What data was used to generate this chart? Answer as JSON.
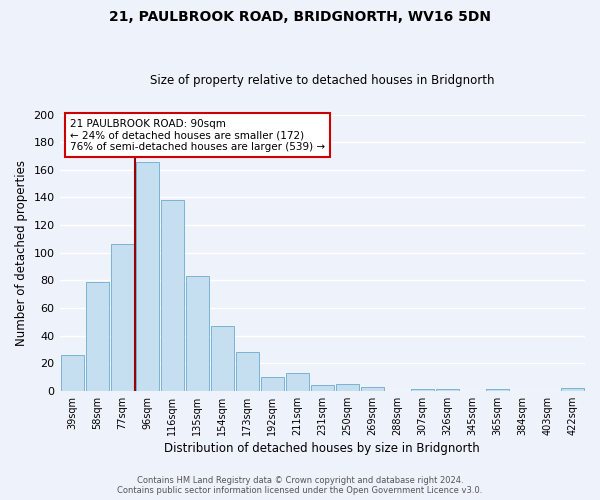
{
  "title": "21, PAULBROOK ROAD, BRIDGNORTH, WV16 5DN",
  "subtitle": "Size of property relative to detached houses in Bridgnorth",
  "xlabel": "Distribution of detached houses by size in Bridgnorth",
  "ylabel": "Number of detached properties",
  "bar_labels": [
    "39sqm",
    "58sqm",
    "77sqm",
    "96sqm",
    "116sqm",
    "135sqm",
    "154sqm",
    "173sqm",
    "192sqm",
    "211sqm",
    "231sqm",
    "250sqm",
    "269sqm",
    "288sqm",
    "307sqm",
    "326sqm",
    "345sqm",
    "365sqm",
    "384sqm",
    "403sqm",
    "422sqm"
  ],
  "bar_values": [
    26,
    79,
    106,
    166,
    138,
    83,
    47,
    28,
    10,
    13,
    4,
    5,
    3,
    0,
    1,
    1,
    0,
    1,
    0,
    0,
    2
  ],
  "bar_color": "#c5dff0",
  "bar_edge_color": "#7ab4d4",
  "highlight_index": 3,
  "highlight_line_color": "#9b0000",
  "annotation_line1": "21 PAULBROOK ROAD: 90sqm",
  "annotation_line2": "← 24% of detached houses are smaller (172)",
  "annotation_line3": "76% of semi-detached houses are larger (539) →",
  "annotation_box_edgecolor": "#cc0000",
  "annotation_box_facecolor": "white",
  "ylim": [
    0,
    200
  ],
  "yticks": [
    0,
    20,
    40,
    60,
    80,
    100,
    120,
    140,
    160,
    180,
    200
  ],
  "footer_line1": "Contains HM Land Registry data © Crown copyright and database right 2024.",
  "footer_line2": "Contains public sector information licensed under the Open Government Licence v3.0.",
  "bg_color": "#eef2fa",
  "grid_color": "white"
}
